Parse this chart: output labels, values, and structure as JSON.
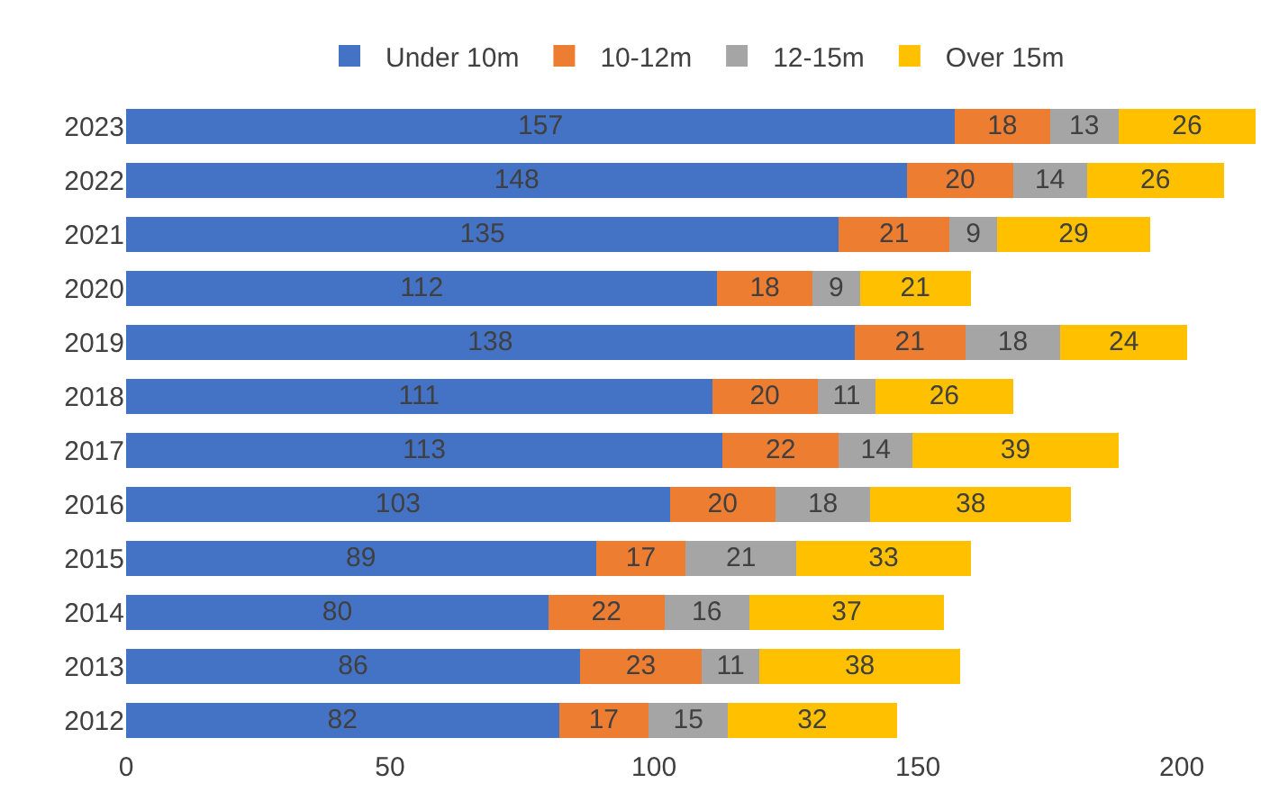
{
  "chart_data": {
    "type": "bar",
    "orientation": "horizontal",
    "stacked": true,
    "data_labels": true,
    "legend": "top",
    "categories": [
      "2023",
      "2022",
      "2021",
      "2020",
      "2019",
      "2018",
      "2017",
      "2016",
      "2015",
      "2014",
      "2013",
      "2012"
    ],
    "series": [
      {
        "name": "Under 10m",
        "color": "#4472c4",
        "values": [
          157,
          148,
          135,
          112,
          138,
          111,
          113,
          103,
          89,
          80,
          86,
          82
        ]
      },
      {
        "name": "10-12m",
        "color": "#ed7d31",
        "values": [
          18,
          20,
          21,
          18,
          21,
          20,
          22,
          20,
          17,
          22,
          23,
          17
        ]
      },
      {
        "name": "12-15m",
        "color": "#a5a5a5",
        "values": [
          13,
          14,
          9,
          9,
          18,
          11,
          14,
          18,
          21,
          16,
          11,
          15
        ]
      },
      {
        "name": "Over 15m",
        "color": "#ffc000",
        "values": [
          26,
          26,
          29,
          21,
          24,
          26,
          39,
          38,
          33,
          37,
          38,
          32
        ]
      }
    ],
    "xlim": [
      0,
      215
    ],
    "xticks": [
      0,
      50,
      100,
      150,
      200
    ]
  }
}
